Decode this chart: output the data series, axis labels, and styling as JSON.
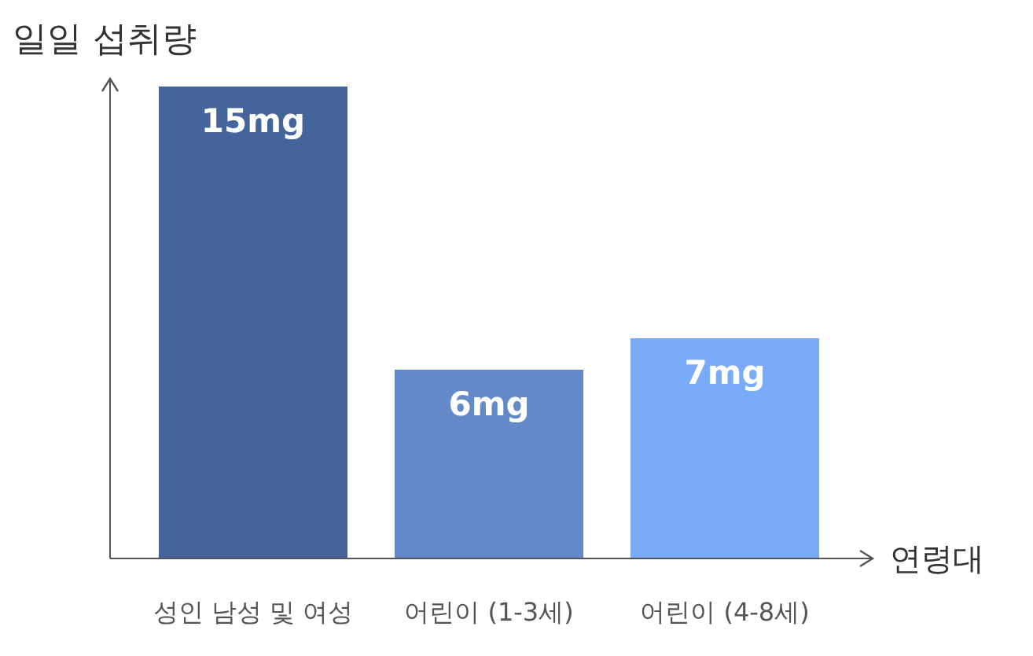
{
  "chart_data": {
    "type": "bar",
    "ylabel": "일일 섭취량",
    "xlabel": "연령대",
    "categories": [
      "성인 남성 및 여성",
      "어린이 (1-3세)",
      "어린이 (4-8세)"
    ],
    "values": [
      15,
      6,
      7
    ],
    "colors": [
      "#44659b",
      "#6489c9",
      "#7aabf9"
    ],
    "value_labels": [
      "15mg",
      "6mg",
      "7mg"
    ]
  }
}
